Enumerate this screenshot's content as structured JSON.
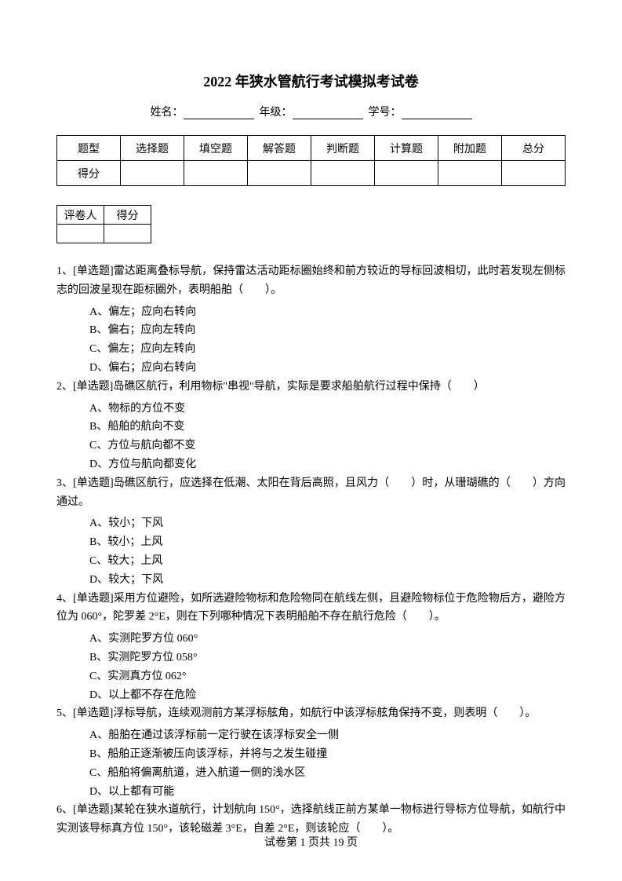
{
  "title": "2022 年狭水管航行考试模拟考试卷",
  "info": {
    "name_label": "姓名：",
    "grade_label": "年级：",
    "id_label": "学号："
  },
  "score_table": {
    "headers": [
      "题型",
      "选择题",
      "填空题",
      "解答题",
      "判断题",
      "计算题",
      "附加题",
      "总分"
    ],
    "row_label": "得分"
  },
  "grader_table": {
    "col1": "评卷人",
    "col2": "得分"
  },
  "questions": {
    "q1": {
      "text": "1、[单选题]雷达距离叠标导航，保持雷达活动距标圈始终和前方较近的导标回波相切，此时若发现左侧标志的回波呈现在距标圈外，表明船舶（　　）。",
      "opts": [
        "A、偏左；应向右转向",
        "B、偏右；应向左转向",
        "C、偏左；应向左转向",
        "D、偏右；应向右转向"
      ]
    },
    "q2": {
      "text": "2、[单选题]岛礁区航行，利用物标\"串视\"导航，实际是要求船舶航行过程中保持（　　）",
      "opts": [
        "A、物标的方位不变",
        "B、船舶的航向不变",
        "C、方位与航向都不变",
        "D、方位与航向都变化"
      ]
    },
    "q3": {
      "text": "3、[单选题]岛礁区航行，应选择在低潮、太阳在背后高照，且风力（　　）时，从珊瑚礁的（　　）方向通过。",
      "opts": [
        "A、较小；下风",
        "B、较小；上风",
        "C、较大；上风",
        "D、较大；下风"
      ]
    },
    "q4": {
      "text": "4、[单选题]采用方位避险，如所选避险物标和危险物同在航线左侧，且避险物标位于危险物后方，避险方位为 060°，陀罗差 2°E，则在下列哪种情况下表明船舶不存在航行危险（　　）。",
      "opts": [
        "A、实测陀罗方位 060°",
        "B、实测陀罗方位 058°",
        "C、实测真方位 062°",
        "D、以上都不存在危险"
      ]
    },
    "q5": {
      "text": "5、[单选题]浮标导航，连续观测前方某浮标舷角，如航行中该浮标舷角保持不变，则表明（　　）。",
      "opts": [
        "A、船舶在通过该浮标前一定行驶在该浮标安全一侧",
        "B、船舶正逐渐被压向该浮标，并将与之发生碰撞",
        "C、船舶将偏离航道，进入航道一侧的浅水区",
        "D、以上都有可能"
      ]
    },
    "q6": {
      "text": "6、[单选题]某轮在狭水道航行，计划航向 150°，选择航线正前方某单一物标进行导标方位导航，如航行中实测该导标真方位 150°，该轮磁差 3°E，自差 2°E，则该轮应（　　）。"
    }
  },
  "footer": {
    "prefix": "试卷第 ",
    "current": "1",
    "mid": " 页共 ",
    "total": "19",
    "suffix": " 页"
  }
}
